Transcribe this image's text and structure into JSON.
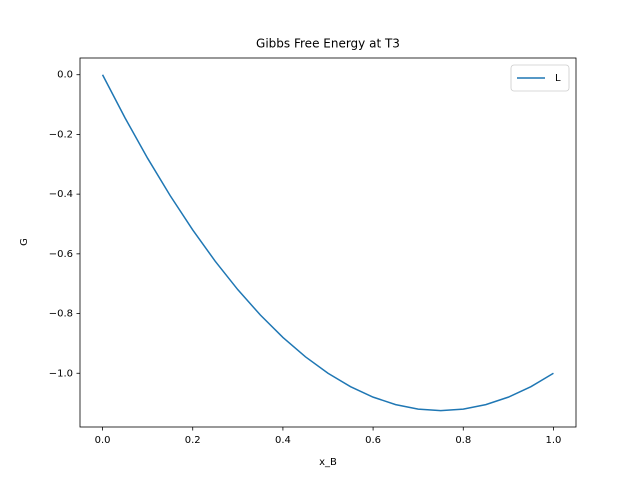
{
  "chart_data": {
    "type": "line",
    "title": "Gibbs Free Energy at T3",
    "xlabel": "x_B",
    "ylabel": "G",
    "x": [
      0,
      0.05,
      0.1,
      0.15,
      0.2,
      0.25,
      0.3,
      0.35,
      0.4,
      0.45,
      0.5,
      0.55,
      0.6,
      0.65,
      0.7,
      0.75,
      0.8,
      0.85,
      0.9,
      0.95,
      1.0
    ],
    "series": [
      {
        "name": "L",
        "color": "#1f77b4",
        "values": [
          0,
          -0.145,
          -0.28,
          -0.405,
          -0.52,
          -0.625,
          -0.72,
          -0.805,
          -0.88,
          -0.945,
          -1.0,
          -1.045,
          -1.08,
          -1.105,
          -1.12,
          -1.125,
          -1.12,
          -1.105,
          -1.08,
          -1.045,
          -1.0
        ]
      }
    ],
    "xlim": [
      -0.05,
      1.05
    ],
    "ylim": [
      -1.18,
      0.056
    ],
    "xticks": [
      {
        "value": 0,
        "label": "0.0"
      },
      {
        "value": 0.2,
        "label": "0.2"
      },
      {
        "value": 0.4,
        "label": "0.4"
      },
      {
        "value": 0.6,
        "label": "0.6"
      },
      {
        "value": 0.8,
        "label": "0.8"
      },
      {
        "value": 1.0,
        "label": "1.0"
      }
    ],
    "yticks": [
      {
        "value": 0,
        "label": "0.0"
      },
      {
        "value": -0.2,
        "label": "−0.2"
      },
      {
        "value": -0.4,
        "label": "−0.4"
      },
      {
        "value": -0.6,
        "label": "−0.6"
      },
      {
        "value": -0.8,
        "label": "−0.8"
      },
      {
        "value": -1.0,
        "label": "−1.0"
      }
    ],
    "legend": "upper right"
  }
}
